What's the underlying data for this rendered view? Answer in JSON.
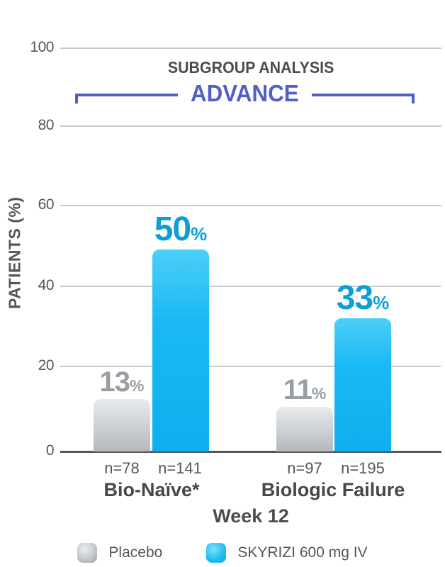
{
  "header": {
    "title": "SUBGROUP ANALYSIS",
    "trial_name": "ADVANCE"
  },
  "y_axis": {
    "title": "PATIENTS (%)",
    "ticks": [
      "100",
      "80",
      "60",
      "40",
      "20",
      "0"
    ]
  },
  "x_axis": {
    "week_label": "Week 12"
  },
  "percent_suffix": "%",
  "legend": {
    "items": [
      {
        "label": "Placebo"
      },
      {
        "label": "SKYRIZI 600 mg IV"
      }
    ]
  },
  "chart_data": {
    "type": "bar",
    "title": "SUBGROUP ANALYSIS",
    "subtitle": "ADVANCE",
    "xlabel": "Week 12",
    "ylabel": "PATIENTS (%)",
    "ylim": [
      0,
      100
    ],
    "yticks": [
      0,
      20,
      40,
      60,
      80,
      100
    ],
    "grid": true,
    "legend_position": "bottom",
    "categories": [
      "Bio-Naïve*",
      "Biologic Failure"
    ],
    "series": [
      {
        "name": "Placebo",
        "values": [
          13,
          11
        ],
        "value_labels": [
          "13",
          "11"
        ],
        "n_labels": [
          "n=78",
          "n=97"
        ],
        "color": "#c6c9cd"
      },
      {
        "name": "SKYRIZI 600 mg IV",
        "values": [
          50,
          33
        ],
        "value_labels": [
          "50",
          "33"
        ],
        "n_labels": [
          "n=141",
          "n=195"
        ],
        "color": "#16b4f0"
      }
    ],
    "colors": {
      "advance_blue": "#5060c9",
      "placebo_label": "#999ea5",
      "skyrizi_label": "#0e9ed6",
      "axis_text": "#54565a",
      "gridline": "#c7c9cb"
    }
  }
}
